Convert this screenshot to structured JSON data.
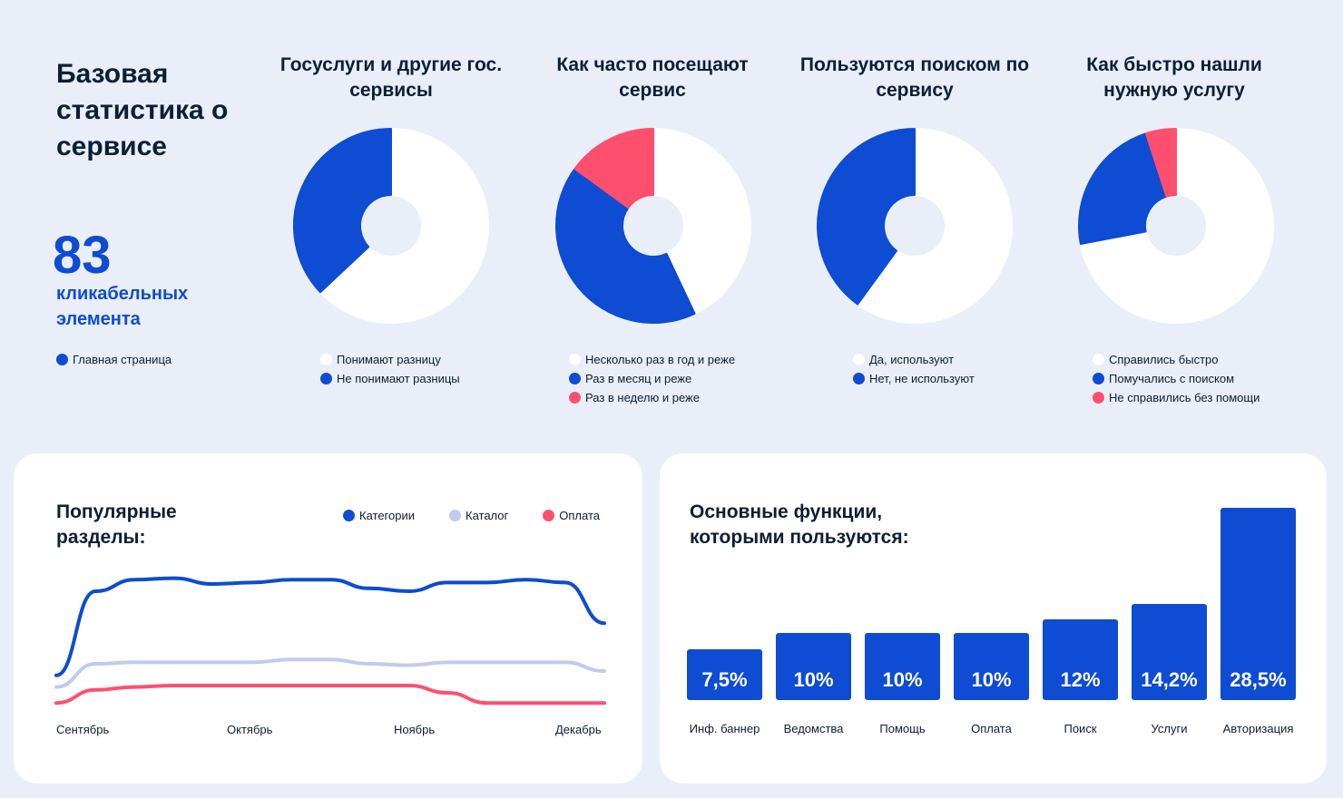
{
  "colors": {
    "primary": "#0d4cd3",
    "light": "#bfccee",
    "accent": "#ff4f6e",
    "white": "#ffffff",
    "bg": "#e9eef8"
  },
  "header": {
    "title": "Базовая статистика о сервисе"
  },
  "summary": {
    "number": "83",
    "label": "кликабельных элемента",
    "legend": "Главная страница"
  },
  "donuts": [
    {
      "title": "Госуслуги и другие гос. сервисы",
      "slices": [
        {
          "label": "Понимают разницу",
          "value": 63,
          "color": "#ffffff"
        },
        {
          "label": "Не понимают разницы",
          "value": 37,
          "color": "#0d4cd3"
        }
      ]
    },
    {
      "title": "Как часто посещают сервис",
      "slices": [
        {
          "label": "Несколько раз в год и реже",
          "value": 43,
          "color": "#ffffff"
        },
        {
          "label": "Раз в месяц и реже",
          "value": 42,
          "color": "#0d4cd3"
        },
        {
          "label": "Раз в неделю и реже",
          "value": 15,
          "color": "#ff4f6e"
        }
      ]
    },
    {
      "title": "Пользуются поиском по сервису",
      "slices": [
        {
          "label": "Да, используют",
          "value": 60,
          "color": "#ffffff"
        },
        {
          "label": "Нет, не используют",
          "value": 40,
          "color": "#0d4cd3"
        }
      ]
    },
    {
      "title": "Как быстро нашли нужную услугу",
      "slices": [
        {
          "label": "Справились быстро",
          "value": 72,
          "color": "#ffffff"
        },
        {
          "label": "Помучались с поиском",
          "value": 23,
          "color": "#0d4cd3"
        },
        {
          "label": "Не справились без помощи",
          "value": 5,
          "color": "#ff4f6e"
        }
      ]
    }
  ],
  "chart_data": [
    {
      "type": "line",
      "title": "Популярные разделы:",
      "x_labels": [
        "Сентябрь",
        "Октябрь",
        "Ноябрь",
        "Декабрь"
      ],
      "ylim": [
        0,
        100
      ],
      "series": [
        {
          "name": "Категории",
          "color": "#0d4cd3",
          "values": [
            22,
            80,
            88,
            89,
            85,
            86,
            88,
            88,
            82,
            80,
            86,
            86,
            88,
            86,
            58
          ]
        },
        {
          "name": "Каталог",
          "color": "#bfccee",
          "values": [
            14,
            30,
            31,
            31,
            31,
            31,
            33,
            33,
            30,
            29,
            31,
            31,
            31,
            31,
            25
          ]
        },
        {
          "name": "Оплата",
          "color": "#ff4f6e",
          "values": [
            3,
            12,
            14,
            15,
            15,
            15,
            15,
            15,
            15,
            15,
            10,
            3,
            3,
            3,
            3
          ]
        }
      ]
    },
    {
      "type": "bar",
      "title": "Основные функции, которыми пользуются:",
      "categories": [
        "Инф. баннер",
        "Ведомства",
        "Помощь",
        "Оплата",
        "Поиск",
        "Услуги",
        "Авторизация"
      ],
      "values": [
        7.5,
        10,
        10,
        10,
        12,
        14.2,
        28.5
      ],
      "value_labels": [
        "7,5%",
        "10%",
        "10%",
        "10%",
        "12%",
        "14,2%",
        "28,5%"
      ]
    }
  ]
}
